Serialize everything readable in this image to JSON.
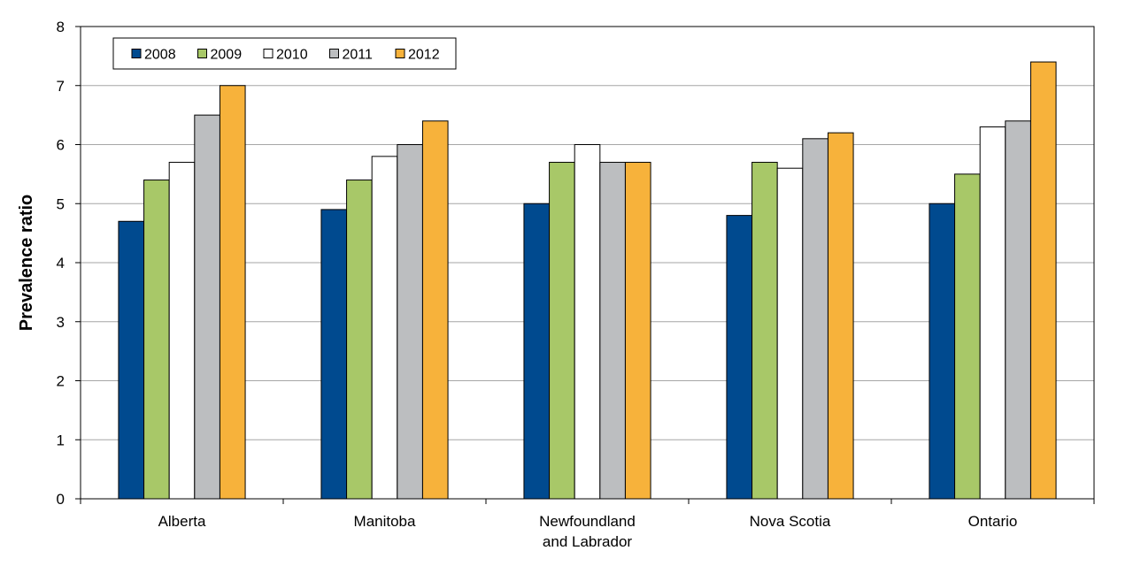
{
  "chart_data": {
    "type": "bar",
    "title": "",
    "xlabel": "",
    "ylabel": "Prevalence ratio",
    "ylim": [
      0,
      8
    ],
    "yticks": [
      0,
      1,
      2,
      3,
      4,
      5,
      6,
      7,
      8
    ],
    "grid": true,
    "legend_position": "top-left",
    "categories": [
      [
        "Alberta"
      ],
      [
        "Manitoba"
      ],
      [
        "Newfoundland",
        "and Labrador"
      ],
      [
        "Nova Scotia"
      ],
      [
        "Ontario"
      ]
    ],
    "series": [
      {
        "name": "2008",
        "color": "#004a8f",
        "values": [
          4.7,
          4.9,
          5.0,
          4.8,
          5.0
        ]
      },
      {
        "name": "2009",
        "color": "#a8c868",
        "values": [
          5.4,
          5.4,
          5.7,
          5.7,
          5.5
        ]
      },
      {
        "name": "2010",
        "color": "#ffffff",
        "values": [
          5.7,
          5.8,
          6.0,
          5.6,
          6.3
        ]
      },
      {
        "name": "2011",
        "color": "#bcbec0",
        "values": [
          6.5,
          6.0,
          5.7,
          6.1,
          6.4
        ]
      },
      {
        "name": "2012",
        "color": "#f7b23b",
        "values": [
          7.0,
          6.4,
          5.7,
          6.2,
          7.4
        ]
      }
    ]
  }
}
